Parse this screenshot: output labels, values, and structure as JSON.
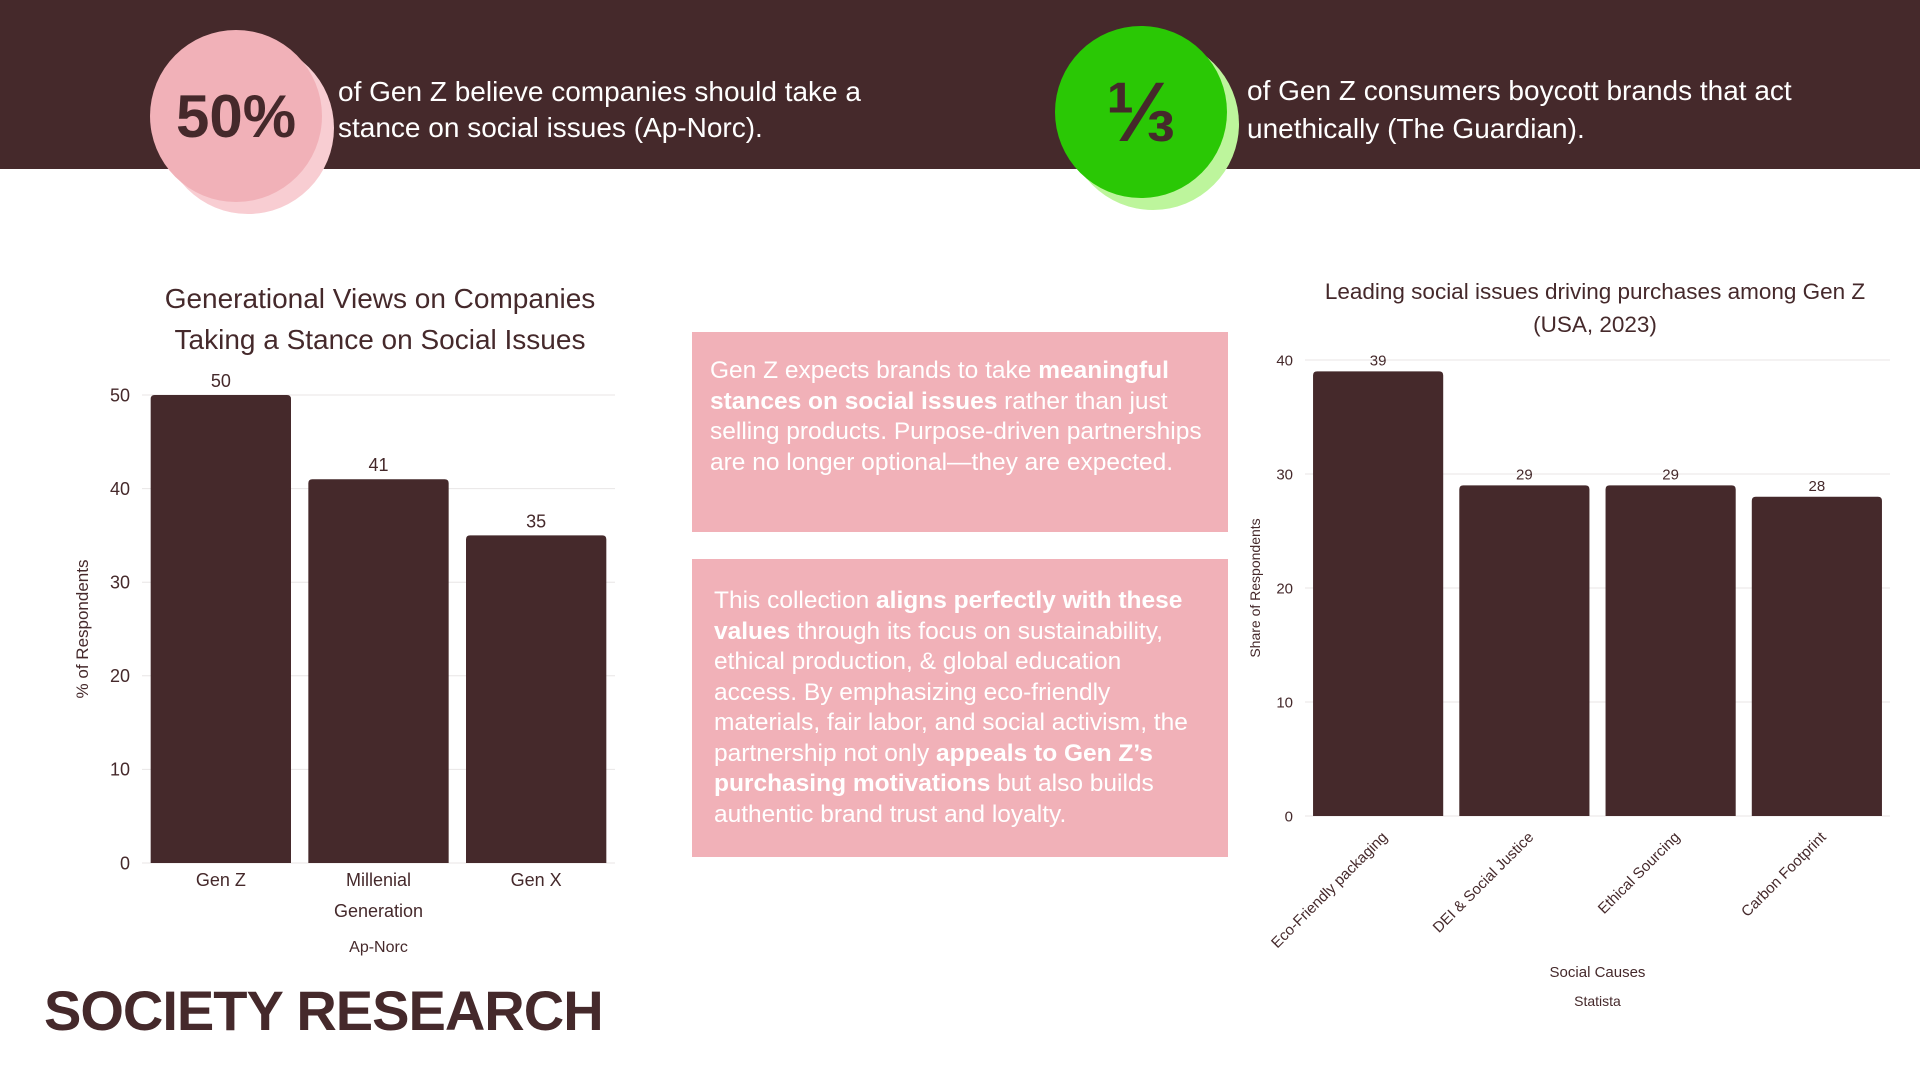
{
  "header": {
    "stat_left": {
      "value": "50%",
      "text": "of Gen Z believe companies should take a stance on social issues (Ap-Norc).",
      "circle_color": "#f1b1b8",
      "shadow_color": "#f8cdd2"
    },
    "stat_right": {
      "value": "⅓",
      "text": "of Gen Z consumers boycott brands that act unethically (The Guardian).",
      "circle_color": "#2ac805",
      "shadow_color": "#bdf59c"
    }
  },
  "colors": {
    "banner": "#45292b",
    "bar": "#45292b",
    "infobox": "#f1b1b8"
  },
  "info_boxes": [
    {
      "segments": [
        {
          "text": "Gen Z expects brands to take ",
          "bold": false
        },
        {
          "text": "meaningful stances on social issues",
          "bold": true
        },
        {
          "text": " rather than just selling products. Purpose-driven partnerships are no longer optional—they are expected.",
          "bold": false
        }
      ]
    },
    {
      "segments": [
        {
          "text": "This collection ",
          "bold": false
        },
        {
          "text": "aligns perfectly with these values",
          "bold": true
        },
        {
          "text": " through its focus on sustainability, ethical production, & global education access. By emphasizing eco-friendly materials, fair labor, and social activism, the partnership not only ",
          "bold": false
        },
        {
          "text": "appeals to Gen Z’s purchasing motivations",
          "bold": true
        },
        {
          "text": " but also builds authentic brand trust and loyalty.",
          "bold": false
        }
      ]
    }
  ],
  "brand": {
    "label": "SOCIETY RESEARCH"
  },
  "chart_data": [
    {
      "type": "bar",
      "title_lines": [
        "Generational Views on Companies",
        "Taking a Stance on Social Issues"
      ],
      "categories": [
        [
          "Gen Z"
        ],
        [
          "Millenial",
          "Generation"
        ],
        [
          "Gen X"
        ]
      ],
      "values": [
        50,
        41,
        35
      ],
      "ylabel": "% of Respondents",
      "xlabel": "",
      "source": "Ap-Norc",
      "ylim": [
        0,
        50
      ],
      "yticks": [
        0,
        10,
        20,
        30,
        40,
        50
      ],
      "grid": true,
      "data_labels": true
    },
    {
      "type": "bar",
      "title_lines": [
        "Leading social issues driving purchases among Gen Z",
        "(USA, 2023)"
      ],
      "categories": [
        "Eco-Friendly packaging",
        "DEI & Social Justice",
        "Ethical Sourcing",
        "Carbon Footprint"
      ],
      "values": [
        39,
        29,
        29,
        28
      ],
      "ylabel": "Share of Respondents",
      "xlabel": "Social Causes",
      "source": "Statista",
      "ylim": [
        0,
        40
      ],
      "yticks": [
        0,
        10,
        20,
        30,
        40
      ],
      "grid": true,
      "data_labels": true,
      "rotated_tick_labels": true
    }
  ]
}
